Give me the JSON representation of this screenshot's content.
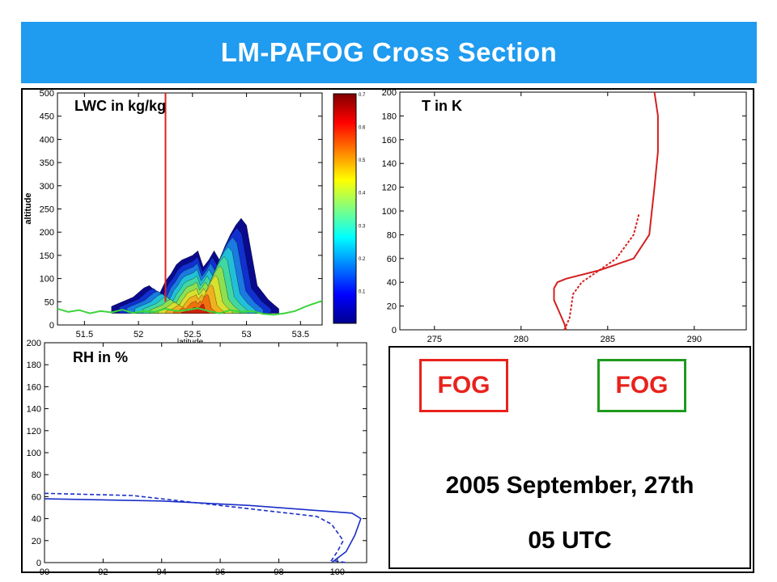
{
  "title": "LM-PAFOG Cross Section",
  "info": {
    "fog_red_label": "FOG",
    "fog_green_label": "FOG",
    "date": "2005 September, 27th",
    "time": "05 UTC"
  },
  "colors": {
    "title_bar": "#1f9bf0",
    "temperature_line": "#d42020",
    "rh_line": "#1a2ec8",
    "fog_red_border": "#e8221c",
    "fog_green_border": "#1e9a1e",
    "terrain_line": "#3ad43a",
    "cross_section_marker": "#e02020"
  },
  "chart_data": [
    {
      "type": "area",
      "label": "LWC in kg/kg",
      "ylabel": "altitude",
      "xlabel": "latitude",
      "xlim": [
        51.25,
        53.7
      ],
      "ylim": [
        0,
        500
      ],
      "xticks": [
        51.5,
        52,
        52.5,
        53,
        53.5
      ],
      "yticks": [
        0,
        50,
        100,
        150,
        200,
        250,
        300,
        350,
        400,
        450,
        500
      ],
      "marker_latitude": 52.25,
      "terrain": {
        "x": [
          51.25,
          51.35,
          51.45,
          51.55,
          51.65,
          51.75,
          51.85,
          51.95,
          52.05,
          52.15,
          52.25,
          52.35,
          52.45,
          52.55,
          52.65,
          52.75,
          52.85,
          52.95,
          53.05,
          53.15,
          53.25,
          53.35,
          53.45,
          53.55,
          53.7
        ],
        "y": [
          35,
          28,
          32,
          25,
          30,
          27,
          33,
          26,
          30,
          28,
          35,
          30,
          32,
          36,
          30,
          25,
          32,
          28,
          30,
          24,
          22,
          25,
          30,
          40,
          52
        ]
      },
      "fog_top": {
        "x": [
          51.75,
          51.85,
          51.95,
          52.05,
          52.1,
          52.15,
          52.2,
          52.25,
          52.3,
          52.35,
          52.4,
          52.45,
          52.5,
          52.55,
          52.6,
          52.65,
          52.7,
          52.75,
          52.8,
          52.85,
          52.9,
          52.95,
          53.0,
          53.05,
          53.1,
          53.15,
          53.2,
          53.25,
          53.3
        ],
        "y": [
          40,
          50,
          60,
          80,
          85,
          75,
          70,
          95,
          110,
          130,
          140,
          145,
          150,
          160,
          125,
          140,
          160,
          140,
          170,
          195,
          215,
          230,
          215,
          150,
          85,
          70,
          55,
          45,
          35
        ]
      },
      "colorbar": {
        "range": [
          0,
          0.7
        ],
        "ticks": [
          0.1,
          0.2,
          0.3,
          0.4,
          0.5,
          0.6,
          0.7
        ]
      }
    },
    {
      "type": "line",
      "label": "T in K",
      "xlim": [
        273,
        293
      ],
      "ylim": [
        0,
        200
      ],
      "xticks": [
        275,
        280,
        285,
        290
      ],
      "yticks": [
        0,
        20,
        40,
        60,
        80,
        100,
        120,
        140,
        160,
        180,
        200
      ],
      "series": [
        {
          "style": "solid",
          "x": [
            282.6,
            282.5,
            282.2,
            281.9,
            281.9,
            282.1,
            282.6,
            284.5,
            286.5,
            287.4,
            287.7,
            287.9,
            287.9,
            287.7
          ],
          "y": [
            0,
            5,
            15,
            25,
            35,
            40,
            43,
            50,
            60,
            80,
            120,
            150,
            180,
            200
          ]
        },
        {
          "style": "dashed",
          "x": [
            282.5,
            282.8,
            282.9,
            283.0,
            283.5,
            284.5,
            285.5,
            286.5,
            286.8
          ],
          "y": [
            0,
            10,
            20,
            30,
            40,
            50,
            60,
            80,
            97
          ]
        }
      ]
    },
    {
      "type": "line",
      "label": "RH in %",
      "xlim": [
        90,
        101
      ],
      "ylim": [
        0,
        200
      ],
      "xticks": [
        90,
        92,
        94,
        96,
        98,
        100
      ],
      "yticks": [
        0,
        20,
        40,
        60,
        80,
        100,
        120,
        140,
        160,
        180,
        200
      ],
      "series": [
        {
          "style": "solid",
          "x": [
            90,
            94,
            97,
            99.5,
            100.5,
            100.8,
            100.6,
            100.3,
            99.9,
            99.8
          ],
          "y": [
            58,
            56,
            52,
            47,
            45,
            40,
            25,
            10,
            2,
            0
          ]
        },
        {
          "style": "dashed",
          "x": [
            90,
            93,
            96,
            99.3,
            99.8,
            100.2,
            100.0,
            99.8,
            100.3
          ],
          "y": [
            63,
            61,
            52,
            42,
            35,
            20,
            10,
            2,
            0
          ]
        }
      ]
    }
  ]
}
